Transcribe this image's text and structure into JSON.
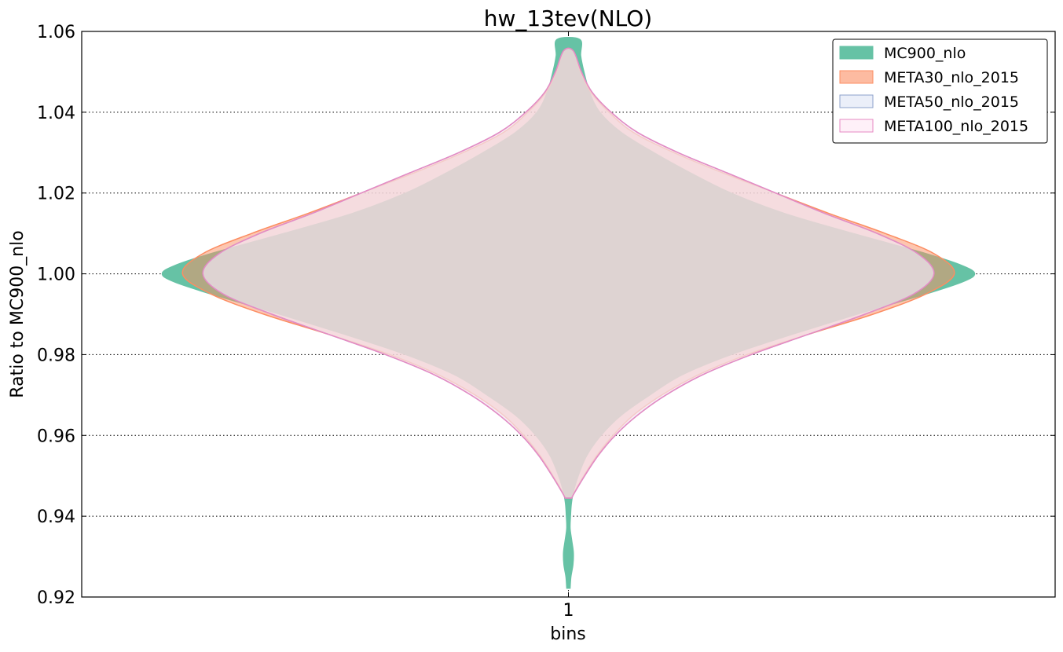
{
  "chart_data": {
    "type": "violin",
    "title": "hw_13tev(NLO)",
    "xlabel": "bins",
    "ylabel": "Ratio to MC900_nlo",
    "categories": [
      "1"
    ],
    "ylim": [
      0.92,
      1.06
    ],
    "yticks": [
      "0.92",
      "0.94",
      "0.96",
      "0.98",
      "1.00",
      "1.02",
      "1.04",
      "1.06"
    ],
    "grid": true,
    "legend_position": "top-right",
    "series": [
      {
        "name": "MC900_nlo",
        "fill": "#66c2a5",
        "stroke": "#66c2a5",
        "fill_opacity": 1.0,
        "profile": [
          [
            0.9222,
            0.004
          ],
          [
            0.925,
            0.006
          ],
          [
            0.928,
            0.011
          ],
          [
            0.931,
            0.012
          ],
          [
            0.934,
            0.008
          ],
          [
            0.937,
            0.004
          ],
          [
            0.94,
            0.005
          ],
          [
            0.943,
            0.007
          ],
          [
            0.946,
            0.012
          ],
          [
            0.95,
            0.024
          ],
          [
            0.955,
            0.045
          ],
          [
            0.96,
            0.08
          ],
          [
            0.965,
            0.13
          ],
          [
            0.97,
            0.2
          ],
          [
            0.975,
            0.28
          ],
          [
            0.98,
            0.4
          ],
          [
            0.985,
            0.55
          ],
          [
            0.99,
            0.71
          ],
          [
            0.995,
            0.88
          ],
          [
            0.998,
            0.97
          ],
          [
            1.0,
            1.0
          ],
          [
            1.002,
            0.97
          ],
          [
            1.005,
            0.88
          ],
          [
            1.01,
            0.7
          ],
          [
            1.015,
            0.53
          ],
          [
            1.02,
            0.4
          ],
          [
            1.025,
            0.3
          ],
          [
            1.03,
            0.21
          ],
          [
            1.035,
            0.13
          ],
          [
            1.04,
            0.077
          ],
          [
            1.045,
            0.052
          ],
          [
            1.05,
            0.038
          ],
          [
            1.054,
            0.03
          ],
          [
            1.058,
            0.028
          ]
        ]
      },
      {
        "name": "META30_nlo_2015",
        "fill": "#fc8d62",
        "stroke": "#fc8d62",
        "fill_opacity": 0.5,
        "profile": [
          [
            0.9445,
            0.008
          ],
          [
            0.946,
            0.015
          ],
          [
            0.95,
            0.038
          ],
          [
            0.955,
            0.07
          ],
          [
            0.96,
            0.11
          ],
          [
            0.965,
            0.16
          ],
          [
            0.97,
            0.23
          ],
          [
            0.975,
            0.32
          ],
          [
            0.98,
            0.44
          ],
          [
            0.985,
            0.59
          ],
          [
            0.99,
            0.75
          ],
          [
            0.995,
            0.88
          ],
          [
            1.0,
            0.95
          ],
          [
            1.005,
            0.9
          ],
          [
            1.01,
            0.78
          ],
          [
            1.015,
            0.64
          ],
          [
            1.02,
            0.51
          ],
          [
            1.025,
            0.38
          ],
          [
            1.03,
            0.26
          ],
          [
            1.035,
            0.16
          ],
          [
            1.04,
            0.1
          ],
          [
            1.045,
            0.055
          ],
          [
            1.05,
            0.03
          ],
          [
            1.0552,
            0.012
          ]
        ]
      },
      {
        "name": "META50_nlo_2015",
        "fill": "#dde5f5",
        "stroke": "#8da0cb",
        "fill_opacity": 0.45,
        "profile": [
          [
            0.9445,
            0.008
          ],
          [
            0.946,
            0.016
          ],
          [
            0.95,
            0.04
          ],
          [
            0.955,
            0.073
          ],
          [
            0.96,
            0.115
          ],
          [
            0.965,
            0.17
          ],
          [
            0.97,
            0.24
          ],
          [
            0.975,
            0.33
          ],
          [
            0.98,
            0.45
          ],
          [
            0.985,
            0.59
          ],
          [
            0.99,
            0.73
          ],
          [
            0.995,
            0.85
          ],
          [
            1.0,
            0.9
          ],
          [
            1.005,
            0.86
          ],
          [
            1.01,
            0.76
          ],
          [
            1.015,
            0.63
          ],
          [
            1.02,
            0.51
          ],
          [
            1.025,
            0.39
          ],
          [
            1.03,
            0.27
          ],
          [
            1.035,
            0.17
          ],
          [
            1.04,
            0.105
          ],
          [
            1.045,
            0.058
          ],
          [
            1.05,
            0.032
          ],
          [
            1.0552,
            0.012
          ]
        ]
      },
      {
        "name": "META100_nlo_2015",
        "fill": "#fde6f3",
        "stroke": "#e78ac3",
        "fill_opacity": 0.45,
        "profile": [
          [
            0.9445,
            0.008
          ],
          [
            0.946,
            0.016
          ],
          [
            0.95,
            0.04
          ],
          [
            0.955,
            0.073
          ],
          [
            0.96,
            0.115
          ],
          [
            0.965,
            0.17
          ],
          [
            0.97,
            0.24
          ],
          [
            0.975,
            0.33
          ],
          [
            0.98,
            0.45
          ],
          [
            0.985,
            0.59
          ],
          [
            0.99,
            0.73
          ],
          [
            0.995,
            0.85
          ],
          [
            1.0,
            0.9
          ],
          [
            1.005,
            0.86
          ],
          [
            1.01,
            0.76
          ],
          [
            1.015,
            0.63
          ],
          [
            1.02,
            0.51
          ],
          [
            1.025,
            0.39
          ],
          [
            1.03,
            0.27
          ],
          [
            1.035,
            0.17
          ],
          [
            1.04,
            0.105
          ],
          [
            1.045,
            0.058
          ],
          [
            1.05,
            0.032
          ],
          [
            1.0552,
            0.012
          ]
        ]
      }
    ]
  }
}
